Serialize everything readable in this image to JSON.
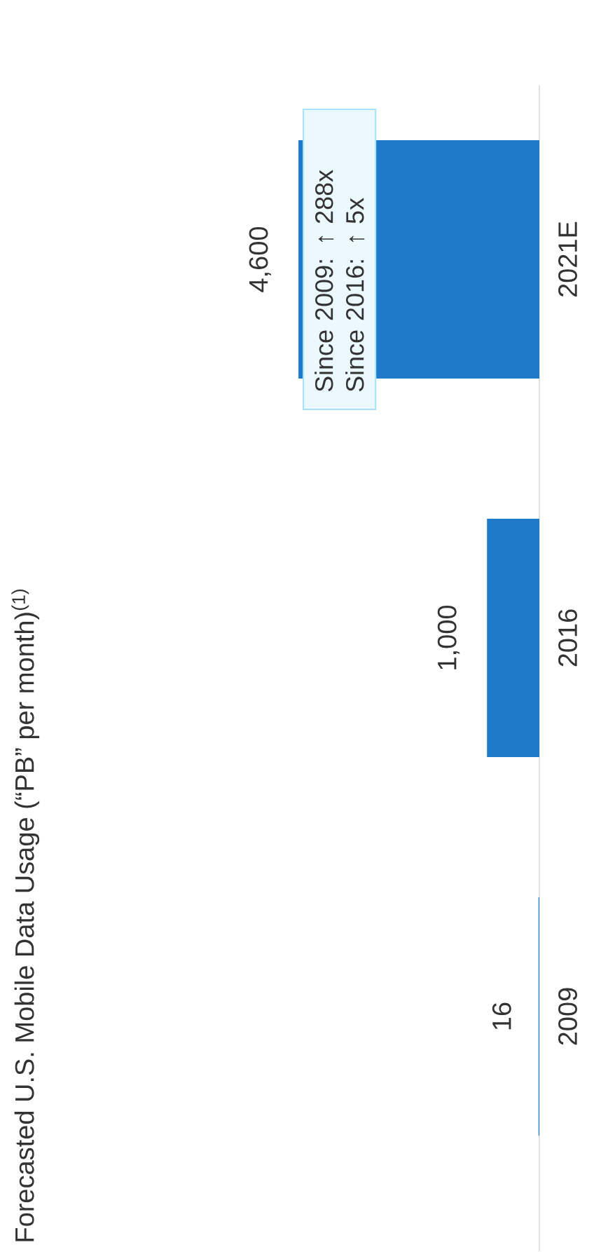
{
  "chart_data": {
    "type": "bar",
    "orientation": "horizontal",
    "title": "Forecasted U.S. Mobile Data Usage (“PB” per month)$^{(1)}$",
    "categories": [
      "2021E",
      "2016",
      "2009"
    ],
    "values": [
      4600,
      1000,
      16
    ],
    "value_labels": [
      "4,600",
      "1,000",
      "16"
    ],
    "color": "#1f7bc9",
    "annotations": [
      "Since 2009: ↑ 288x",
      "Since 2016: ↑ 5x"
    ]
  }
}
